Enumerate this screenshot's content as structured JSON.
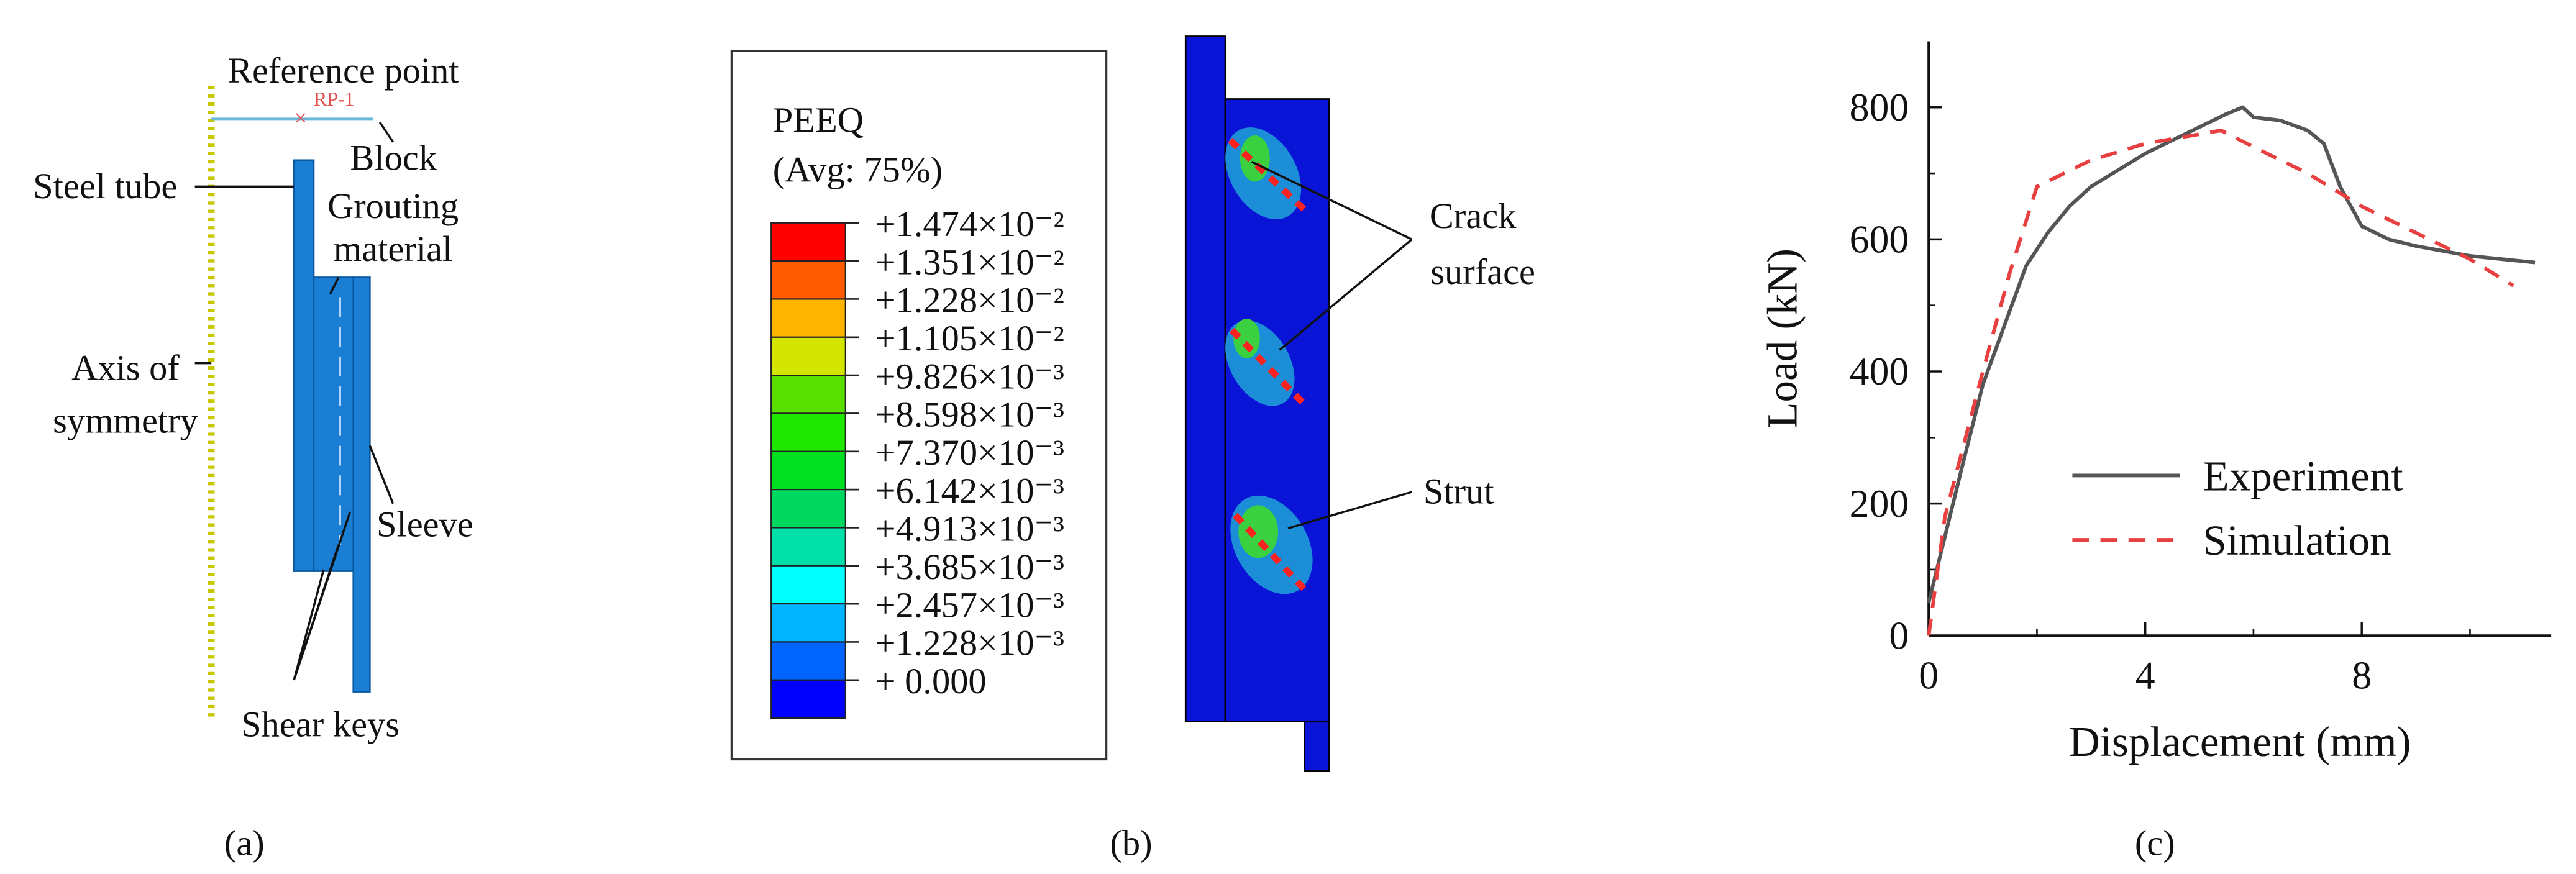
{
  "panel_a": {
    "label": "(a)",
    "reference_point": "Reference point",
    "rp": "RP-1",
    "steel_tube": "Steel tube",
    "block": "Block",
    "grouting": [
      "Grouting",
      "material"
    ],
    "axis": [
      "Axis of",
      "symmetry"
    ],
    "sleeve": "Sleeve",
    "shear_keys": "Shear keys"
  },
  "panel_b": {
    "label": "(b)",
    "legend_title": "PEEQ",
    "legend_subtitle": "(Avg: 75%)",
    "legend_labels": [
      "+1.474×10⁻²",
      "+1.351×10⁻²",
      "+1.228×10⁻²",
      "+1.105×10⁻²",
      "+9.826×10⁻³",
      "+8.598×10⁻³",
      "+7.370×10⁻³",
      "+6.142×10⁻³",
      "+4.913×10⁻³",
      "+3.685×10⁻³",
      "+2.457×10⁻³",
      "+1.228×10⁻³",
      "+    0.000"
    ],
    "legend_colors": [
      "#ff0000",
      "#ff5a00",
      "#ffb400",
      "#d4e600",
      "#5ae000",
      "#1ee800",
      "#00e020",
      "#00d860",
      "#00e0a8",
      "#00ffff",
      "#00b4ff",
      "#0064ff",
      "#0000ff"
    ],
    "crack_surface": [
      "Crack",
      "surface"
    ],
    "strut": "Strut"
  },
  "chart_data": {
    "type": "line",
    "label": "(c)",
    "ylabel": "Load (kN)",
    "xlabel": "Displacement (mm)",
    "xlim": [
      0,
      11.5
    ],
    "ylim": [
      0,
      900
    ],
    "xticks": [
      0,
      4,
      8
    ],
    "yticks": [
      0,
      200,
      400,
      600,
      800
    ],
    "xminor": [
      2,
      6,
      10
    ],
    "yminor": [
      100,
      300,
      500,
      700
    ],
    "series": [
      {
        "name": "Experiment",
        "color": "#555555",
        "dash": false,
        "x": [
          0,
          0.3,
          0.6,
          1,
          1.4,
          1.8,
          2.2,
          2.6,
          3,
          3.6,
          4,
          4.5,
          5,
          5.5,
          5.8,
          6,
          6.5,
          7,
          7.3,
          7.6,
          8,
          8.5,
          9,
          10,
          11.2
        ],
        "values": [
          50,
          150,
          250,
          380,
          470,
          560,
          610,
          650,
          680,
          710,
          730,
          750,
          770,
          790,
          800,
          785,
          780,
          765,
          745,
          680,
          620,
          600,
          590,
          575,
          565
        ]
      },
      {
        "name": "Simulation",
        "color": "#e84040",
        "dash": true,
        "x": [
          0,
          0.3,
          1,
          1.5,
          2,
          3,
          4,
          5.4,
          6,
          7,
          8,
          9,
          10,
          10.8
        ],
        "values": [
          0,
          180,
          400,
          550,
          680,
          720,
          745,
          765,
          740,
          700,
          650,
          610,
          570,
          530
        ]
      }
    ]
  }
}
